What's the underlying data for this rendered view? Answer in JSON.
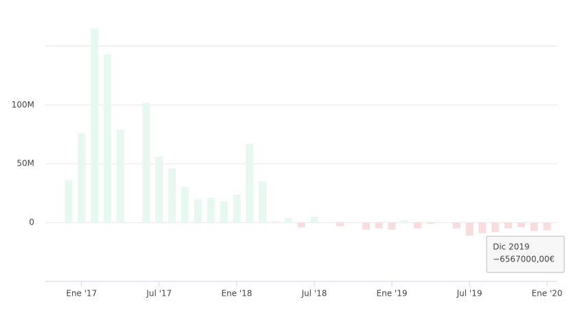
{
  "chart_data": {
    "type": "bar",
    "categories": [
      null,
      "Ene '17",
      null,
      null,
      null,
      null,
      null,
      "Jul '17",
      null,
      null,
      null,
      null,
      null,
      "Ene '18",
      null,
      null,
      null,
      null,
      null,
      "Jul '18",
      null,
      null,
      null,
      null,
      null,
      "Ene '19",
      null,
      null,
      null,
      null,
      null,
      "Jul '19",
      null,
      null,
      null,
      null,
      null,
      "Ene '20"
    ],
    "values": [
      36000000,
      76000000,
      165000000,
      143000000,
      79000000,
      0,
      102000000,
      56000000,
      46000000,
      30000000,
      20000000,
      21000000,
      18000000,
      24000000,
      67000000,
      35000000,
      1000000,
      4000000,
      -4000000,
      5000000,
      0,
      -3000000,
      0,
      -6000000,
      -5000000,
      -6000000,
      2000000,
      -5000000,
      -1000000,
      0,
      -5000000,
      -11000000,
      -9000000,
      -8000000,
      -5000000,
      -4000000,
      -7000000,
      -6567000
    ],
    "positive_color": "#e6f8ef",
    "negative_color": "#f9dcdd",
    "ylim": [
      -50000000,
      170000000
    ],
    "yticks": [
      {
        "value": 0,
        "label": "0"
      },
      {
        "value": 50000000,
        "label": "50M"
      },
      {
        "value": 100000000,
        "label": "100M"
      }
    ],
    "grid": true,
    "tooltip": {
      "title": "Dic 2019",
      "label": "−6567000,00€"
    }
  }
}
